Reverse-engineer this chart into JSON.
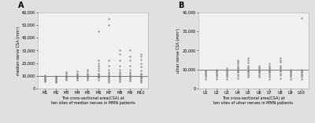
{
  "panel_A": {
    "title": "A",
    "xlabel": "The cross-sectional area(CSA) at\nten sites of median nerves in MMN patients",
    "ylabel": "median nerve CSA (mm²)",
    "xlabels": [
      "M1",
      "M2",
      "M3",
      "M4",
      "M5",
      "M6",
      "M7",
      "M8",
      "M9",
      "M10"
    ],
    "ylim": [
      0,
      60000
    ],
    "yticks": [
      0,
      10000,
      20000,
      30000,
      40000,
      50000,
      60000
    ],
    "ytick_labels": [
      "0",
      "10,000",
      "20,000",
      "30,000",
      "40,000",
      "50,000",
      "60,000"
    ],
    "hline_y": 10000,
    "scatter_data": {
      "M1": [
        5500,
        6000,
        6500,
        7000,
        7500,
        8000,
        8500,
        9000,
        9500,
        10000,
        10500
      ],
      "M2": [
        5000,
        5500,
        6000,
        7000,
        7500,
        8000,
        8500,
        9000,
        9500,
        10000
      ],
      "M3": [
        6500,
        7500,
        8500,
        9000,
        9500,
        10000,
        10800,
        11500,
        13000
      ],
      "M4": [
        7000,
        8000,
        8500,
        9000,
        9500,
        10000,
        10500,
        11000,
        12000,
        13500
      ],
      "M5": [
        7000,
        8000,
        9000,
        9500,
        10000,
        10500,
        11000,
        12000,
        13500,
        15000
      ],
      "M6": [
        7000,
        8500,
        9000,
        9500,
        10000,
        10500,
        11000,
        12000,
        14000,
        16000,
        18000,
        20000,
        22000,
        45000
      ],
      "M7": [
        5000,
        6000,
        7000,
        8000,
        9000,
        9500,
        10000,
        10500,
        11500,
        13000,
        15000,
        18000,
        22000,
        50000,
        55000
      ],
      "M8": [
        5500,
        7000,
        8000,
        9000,
        9500,
        10000,
        10500,
        11500,
        13000,
        15000,
        18000,
        22000,
        27000,
        30000
      ],
      "M9": [
        6000,
        7000,
        8000,
        9000,
        9500,
        10000,
        10500,
        11500,
        13000,
        15000,
        18000,
        22000,
        25000,
        30000
      ],
      "M10": [
        5000,
        6000,
        7000,
        8000,
        8500,
        9000,
        9500,
        10000,
        11000,
        12000,
        14000,
        17000,
        20000,
        23000,
        25000,
        27000
      ]
    }
  },
  "panel_B": {
    "title": "B",
    "xlabel": "The cross-sectional area(CSA) at\nten sites of ulnar nerves in MMN patients",
    "ylabel": "ulnar nerve CSA (mm²)",
    "xlabels": [
      "U1",
      "U2",
      "U3",
      "U4",
      "U5",
      "U6",
      "U7",
      "U8",
      "U9",
      "U10"
    ],
    "ylim": [
      0,
      40000
    ],
    "yticks": [
      0,
      10000,
      20000,
      30000,
      40000
    ],
    "ytick_labels": [
      "0",
      "10,000",
      "20,000",
      "30,000",
      "40,000"
    ],
    "hline_y": 10000,
    "scatter_data": {
      "U1": [
        5000,
        6000,
        7000,
        7500,
        8000,
        8500,
        9000,
        9500
      ],
      "U2": [
        5000,
        6000,
        7000,
        7500,
        8000,
        8500,
        9000,
        9500,
        10000
      ],
      "U3": [
        5000,
        6000,
        7000,
        7500,
        8000,
        8500,
        9000,
        9500,
        10000,
        10500
      ],
      "U4": [
        5500,
        6500,
        7500,
        8500,
        9000,
        9500,
        10000,
        10500,
        11000,
        12000,
        13000,
        14000,
        15000
      ],
      "U5": [
        6000,
        7000,
        8000,
        8500,
        9000,
        9500,
        10000,
        10500,
        11000,
        12000,
        13500,
        15000,
        16000
      ],
      "U6": [
        6000,
        7000,
        8000,
        8500,
        9000,
        9500,
        10000,
        10500,
        11000,
        12000
      ],
      "U7": [
        5000,
        6000,
        7000,
        8000,
        8500,
        9000,
        9500,
        10000,
        10500,
        11000,
        12000,
        13000
      ],
      "U8": [
        5500,
        7000,
        8000,
        9000,
        9500,
        10000,
        10500,
        11000,
        12000,
        14000,
        15000,
        16000
      ],
      "U9": [
        5000,
        6000,
        7000,
        7500,
        8000,
        8500,
        9000,
        9500,
        10000
      ],
      "U10": [
        5000,
        6000,
        7000,
        7500,
        8000,
        8500,
        9000,
        9500,
        10000,
        37000
      ]
    }
  },
  "bg_color": "#e0e0e0",
  "plot_bg_color": "#f0f0f0",
  "marker_color": "#888888",
  "marker_size": 3,
  "hline_color": "#777777",
  "hline_lw": 0.7,
  "spine_color": "#aaaaaa",
  "tick_fontsize": 3.5,
  "label_fontsize": 3.5,
  "title_fontsize": 7
}
